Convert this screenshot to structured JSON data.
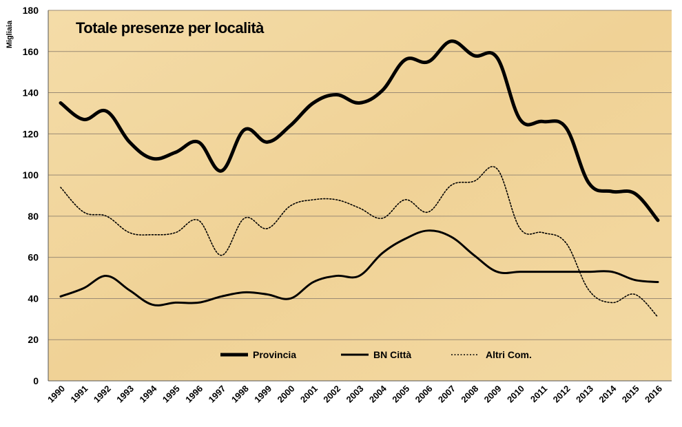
{
  "chart_data": {
    "type": "line",
    "title": "Totale presenze per località",
    "ylabel": "Migliaia",
    "xlabel": "",
    "ylim": [
      0,
      180
    ],
    "yticks": [
      0,
      20,
      40,
      60,
      80,
      100,
      120,
      140,
      160,
      180
    ],
    "grid": true,
    "legend_position": "bottom-center",
    "categories": [
      "1990",
      "1991",
      "1992",
      "1993",
      "1994",
      "1995",
      "1996",
      "1997",
      "1998",
      "1999",
      "2000",
      "2001",
      "2002",
      "2003",
      "2004",
      "2005",
      "2006",
      "2007",
      "2008",
      "2009",
      "2010",
      "2011",
      "2012",
      "2013",
      "2014",
      "2015",
      "2016"
    ],
    "series": [
      {
        "name": "Provincia",
        "style": "thick",
        "color": "#000000",
        "values": [
          135,
          127,
          131,
          116,
          108,
          111,
          116,
          102,
          122,
          116,
          124,
          135,
          139,
          135,
          141,
          156,
          155,
          165,
          158,
          157,
          127,
          126,
          123,
          96,
          92,
          91,
          78
        ]
      },
      {
        "name": "BN Città",
        "style": "medium",
        "color": "#000000",
        "values": [
          41,
          45,
          51,
          44,
          37,
          38,
          38,
          41,
          43,
          42,
          40,
          48,
          51,
          51,
          62,
          69,
          73,
          70,
          61,
          53,
          53,
          53,
          53,
          53,
          53,
          49,
          48
        ]
      },
      {
        "name": "Altri Com.",
        "style": "dotted",
        "color": "#000000",
        "values": [
          94,
          82,
          80,
          72,
          71,
          72,
          78,
          61,
          79,
          74,
          85,
          88,
          88,
          84,
          79,
          88,
          82,
          95,
          97,
          103,
          74,
          72,
          67,
          44,
          38,
          42,
          31
        ]
      }
    ],
    "colors": {
      "background": "#f2d7a0",
      "grid": "#9a8a74",
      "line": "#000000"
    }
  }
}
